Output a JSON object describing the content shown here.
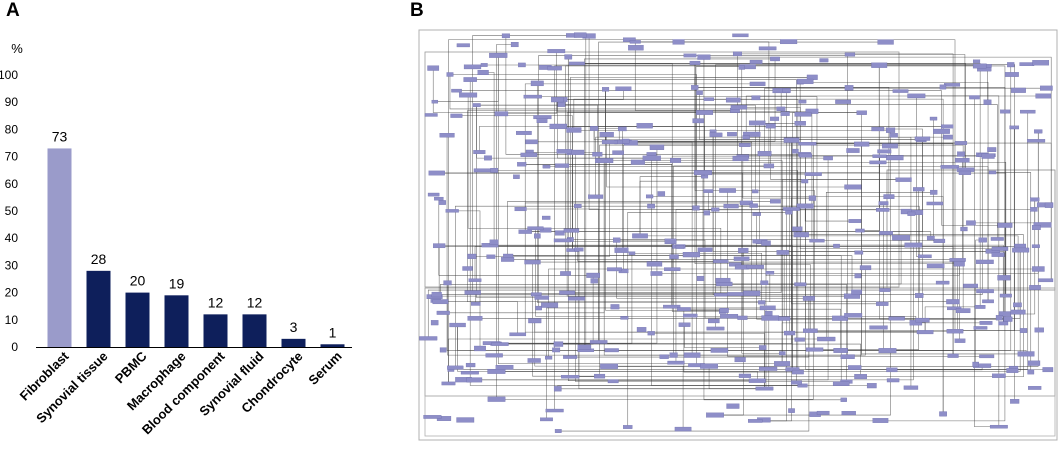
{
  "panels": {
    "a_label": "A",
    "b_label": "B"
  },
  "chart_data": {
    "type": "bar",
    "title": "",
    "ylabel": "%",
    "xlabel": "",
    "ylim": [
      0,
      100
    ],
    "yticks": [
      0,
      10,
      20,
      30,
      40,
      50,
      60,
      70,
      80,
      90,
      100
    ],
    "categories": [
      "Fibroblast",
      "Synovial tissue",
      "PBMC",
      "Macrophage",
      "Blood component",
      "Synovial fluid",
      "Chondrocyte",
      "Serum"
    ],
    "values": [
      73,
      28,
      20,
      19,
      12,
      12,
      3,
      1
    ],
    "highlight_index": 0,
    "colors": {
      "highlight": "#9a9bca",
      "bar": "#0e1f5b",
      "axis": "#000000"
    },
    "grid": false,
    "legend": "none"
  },
  "network": {
    "description_visible": false,
    "node_color": "#8e8ec8",
    "edge_color": "#3a3a3a"
  }
}
